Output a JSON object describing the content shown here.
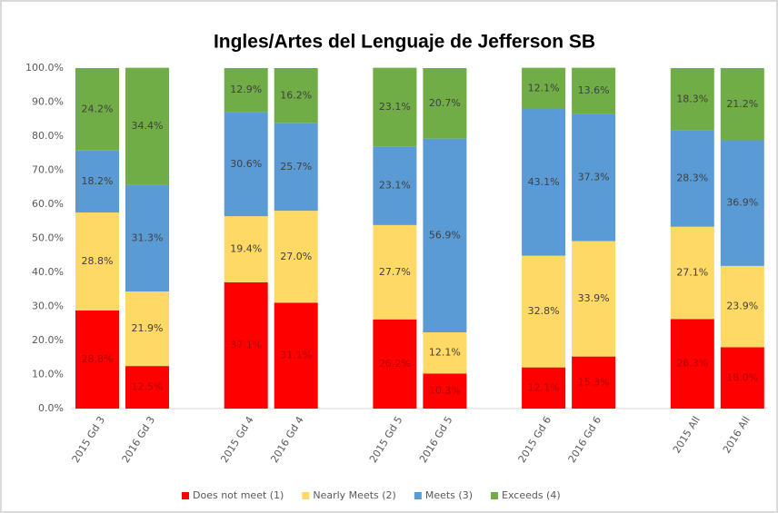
{
  "chart_data": {
    "type": "stacked_bar",
    "title": "Ingles/Artes del Lenguaje de Jefferson SB",
    "categories": [
      "2015 Gd 3",
      "2016 Gd 3",
      "2015 Gd 4",
      "2016 Gd 4",
      "2015 Gd 5",
      "2016 Gd 5",
      "2015 Gd 6",
      "2016 Gd 6",
      "2015 All",
      "2016 All"
    ],
    "series": [
      {
        "name": "Does not meet (1)",
        "color": "#ff0000",
        "values": [
          28.8,
          12.5,
          37.1,
          31.1,
          26.2,
          10.3,
          12.1,
          15.3,
          26.3,
          18.0
        ],
        "value_labels": [
          "28.8%",
          "12.5%",
          "37.1%",
          "31.1%",
          "26.2%",
          "10.3%",
          "12.1%",
          "15.3%",
          "26.3%",
          "18.0%"
        ]
      },
      {
        "name": "Nearly Meets (2)",
        "color": "#ffd966",
        "values": [
          28.8,
          21.9,
          19.4,
          27.0,
          27.7,
          12.1,
          32.8,
          33.9,
          27.1,
          23.9
        ],
        "value_labels": [
          "28.8%",
          "21.9%",
          "19.4%",
          "27.0%",
          "27.7%",
          "12.1%",
          "32.8%",
          "33.9%",
          "27.1%",
          "23.9%"
        ]
      },
      {
        "name": "Meets (3)",
        "color": "#5b9bd5",
        "values": [
          18.2,
          31.3,
          30.6,
          25.7,
          23.1,
          56.9,
          43.1,
          37.3,
          28.3,
          36.9
        ],
        "value_labels": [
          "18.2%",
          "31.3%",
          "30.6%",
          "25.7%",
          "23.1%",
          "56.9%",
          "43.1%",
          "37.3%",
          "28.3%",
          "36.9%"
        ]
      },
      {
        "name": "Exceeds (4)",
        "color": "#70ad47",
        "values": [
          24.2,
          34.4,
          12.9,
          16.2,
          23.1,
          20.7,
          12.1,
          13.6,
          18.3,
          21.2
        ],
        "value_labels": [
          "24.2%",
          "34.4%",
          "12.9%",
          "16.2%",
          "23.1%",
          "20.7%",
          "12.1%",
          "13.6%",
          "18.3%",
          "21.2%"
        ]
      }
    ],
    "ylim": [
      0,
      100
    ],
    "yticks": [
      {
        "value": 0,
        "label": "0.0%"
      },
      {
        "value": 10,
        "label": "10.0%"
      },
      {
        "value": 20,
        "label": "20.0%"
      },
      {
        "value": 30,
        "label": "30.0%"
      },
      {
        "value": 40,
        "label": "40.0%"
      },
      {
        "value": 50,
        "label": "50.0%"
      },
      {
        "value": 60,
        "label": "60.0%"
      },
      {
        "value": 70,
        "label": "70.0%"
      },
      {
        "value": 80,
        "label": "80.0%"
      },
      {
        "value": 90,
        "label": "90.0%"
      },
      {
        "value": 100,
        "label": "100.0%"
      }
    ],
    "grid": false,
    "legend": "bottom"
  }
}
